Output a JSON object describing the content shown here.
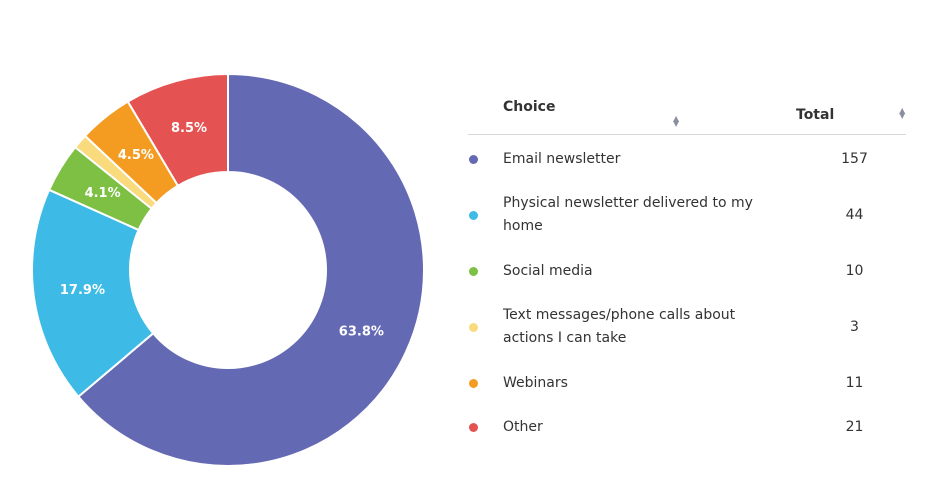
{
  "chart_data": {
    "type": "pie",
    "variant": "donut",
    "start": "top, clockwise",
    "slices": [
      {
        "label": "Email newsletter",
        "value": 157,
        "percent_label": "63.8%",
        "color": "#6469b3"
      },
      {
        "label": "Physical newsletter delivered to my home",
        "value": 44,
        "percent_label": "17.9%",
        "color": "#3dbbe6"
      },
      {
        "label": "Social media",
        "value": 10,
        "percent_label": "4.1%",
        "color": "#7dc043"
      },
      {
        "label": "Text messages/phone calls about actions I can take",
        "value": 3,
        "percent_label": "",
        "color": "#f9db7e"
      },
      {
        "label": "Webinars",
        "value": 11,
        "percent_label": "4.5%",
        "color": "#f49c22"
      },
      {
        "label": "Other",
        "value": 21,
        "percent_label": "8.5%",
        "color": "#e45351"
      }
    ]
  },
  "table": {
    "headers": {
      "choice": "Choice",
      "total": "Total"
    },
    "sort_icon": "sort-updown-icon",
    "rows": [
      {
        "choice": "Email newsletter",
        "total": "157"
      },
      {
        "choice": "Physical newsletter delivered to my home",
        "total": "44"
      },
      {
        "choice": "Social media",
        "total": "10"
      },
      {
        "choice": "Text messages/phone calls about actions I can take",
        "total": "3"
      },
      {
        "choice": "Webinars",
        "total": "11"
      },
      {
        "choice": "Other",
        "total": "21"
      }
    ]
  }
}
